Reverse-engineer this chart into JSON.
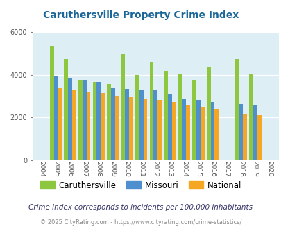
{
  "title": "Caruthersville Property Crime Index",
  "years": [
    2004,
    2005,
    2006,
    2007,
    2008,
    2009,
    2010,
    2011,
    2012,
    2013,
    2014,
    2015,
    2016,
    2017,
    2018,
    2019,
    2020
  ],
  "caruthersville": [
    null,
    5350,
    4750,
    3780,
    3680,
    3560,
    4960,
    4000,
    4600,
    4200,
    4030,
    3750,
    4380,
    null,
    4750,
    4040,
    null
  ],
  "missouri": [
    null,
    3960,
    3820,
    3760,
    3660,
    3380,
    3350,
    3290,
    3300,
    3100,
    2860,
    2830,
    2720,
    null,
    2620,
    2590,
    null
  ],
  "national": [
    null,
    3380,
    3290,
    3230,
    3160,
    3020,
    2940,
    2870,
    2840,
    2720,
    2590,
    2500,
    2390,
    null,
    2180,
    2110,
    null
  ],
  "colors": {
    "caruthersville": "#8dc63f",
    "missouri": "#4e8fce",
    "national": "#f5a623"
  },
  "ylim": [
    0,
    6000
  ],
  "yticks": [
    0,
    2000,
    4000,
    6000
  ],
  "plot_bg": "#ddeef5",
  "subtitle": "Crime Index corresponds to incidents per 100,000 inhabitants",
  "footer": "© 2025 CityRating.com - https://www.cityrating.com/crime-statistics/",
  "title_color": "#1a6699",
  "subtitle_color": "#333366",
  "footer_color": "#888888"
}
